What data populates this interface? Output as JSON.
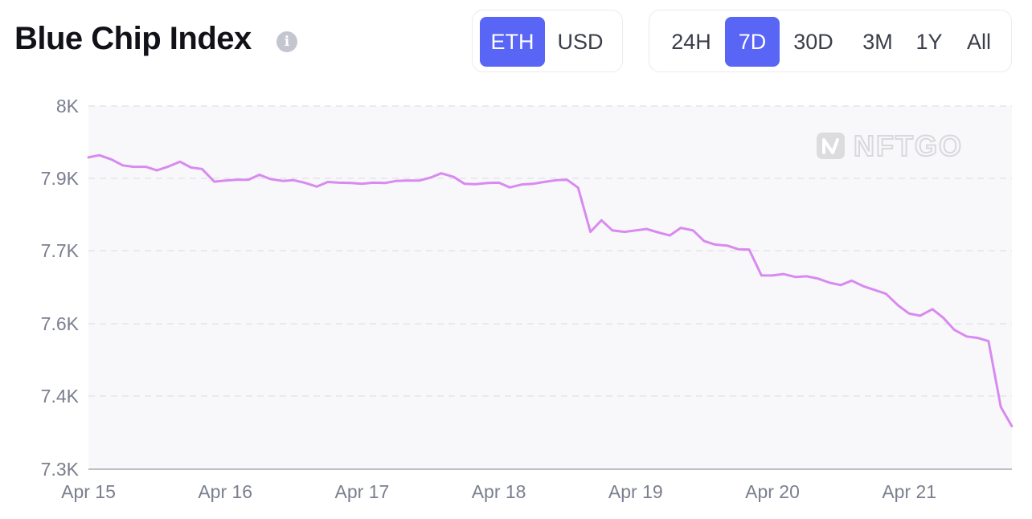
{
  "header": {
    "title": "Blue Chip Index",
    "info_icon": "info-icon"
  },
  "currency_toggle": {
    "options": [
      "ETH",
      "USD"
    ],
    "selected": "ETH"
  },
  "range_toggle": {
    "options": [
      "24H",
      "7D",
      "30D",
      "3M",
      "1Y",
      "All"
    ],
    "selected": "7D"
  },
  "watermark": {
    "text": "NFTGO",
    "icon": "nftgo-logo-icon"
  },
  "colors": {
    "accent": "#5865f5",
    "line": "#d98af0",
    "plot_bg": "#f8f8fa",
    "grid": "#e4e4ea"
  },
  "chart_data": {
    "type": "line",
    "title": "Blue Chip Index",
    "xlabel": "",
    "ylabel": "",
    "grid": true,
    "y_ticks": [
      "7.3K",
      "7.4K",
      "7.6K",
      "7.7K",
      "7.9K",
      "8K"
    ],
    "x_ticks": [
      "Apr 15",
      "Apr 16",
      "Apr 17",
      "Apr 18",
      "Apr 19",
      "Apr 20",
      "Apr 21"
    ],
    "series": [
      {
        "x": [
          15.0,
          15.08,
          15.17,
          15.25,
          15.33,
          15.42,
          15.5,
          15.58,
          15.67,
          15.75,
          15.83,
          15.92,
          16.0,
          16.08,
          16.17,
          16.25,
          16.33,
          16.42,
          16.5,
          16.58,
          16.67,
          16.75,
          16.83,
          16.92,
          17.0,
          17.08,
          17.17,
          17.25,
          17.33,
          17.42,
          17.5,
          17.58,
          17.67,
          17.75,
          17.83,
          17.92,
          18.0,
          18.08,
          18.17,
          18.25,
          18.33,
          18.42,
          18.5,
          18.58,
          18.67,
          18.75,
          18.83,
          18.92,
          19.0,
          19.08,
          19.17,
          19.25,
          19.33,
          19.42,
          19.5,
          19.58,
          19.67,
          19.75,
          19.83,
          19.92,
          20.0,
          20.08,
          20.17,
          20.25,
          20.33,
          20.42,
          20.5,
          20.58,
          20.67,
          20.75,
          20.83,
          20.92,
          21.0,
          21.08,
          21.17,
          21.25,
          21.33,
          21.42,
          21.5,
          21.58,
          21.67,
          21.75
        ],
        "values": [
          7929,
          7932,
          7926,
          7918,
          7916,
          7916,
          7911,
          7916,
          7923,
          7915,
          7913,
          7891,
          7894,
          7896,
          7896,
          7905,
          7898,
          7893,
          7895,
          7888,
          7877,
          7890,
          7888,
          7887,
          7885,
          7888,
          7887,
          7893,
          7894,
          7894,
          7901,
          7907,
          7902,
          7885,
          7884,
          7887,
          7888,
          7875,
          7883,
          7885,
          7890,
          7895,
          7896,
          7874,
          7752,
          7784,
          7756,
          7752,
          7756,
          7760,
          7750,
          7742,
          7763,
          7756,
          7727,
          7717,
          7714,
          7704,
          7703,
          7666,
          7666,
          7668,
          7664,
          7665,
          7662,
          7656,
          7653,
          7659,
          7651,
          7646,
          7641,
          7625,
          7614,
          7611,
          7620,
          7608,
          7583,
          7565,
          7561,
          7552,
          7385,
          7359
        ]
      }
    ]
  }
}
